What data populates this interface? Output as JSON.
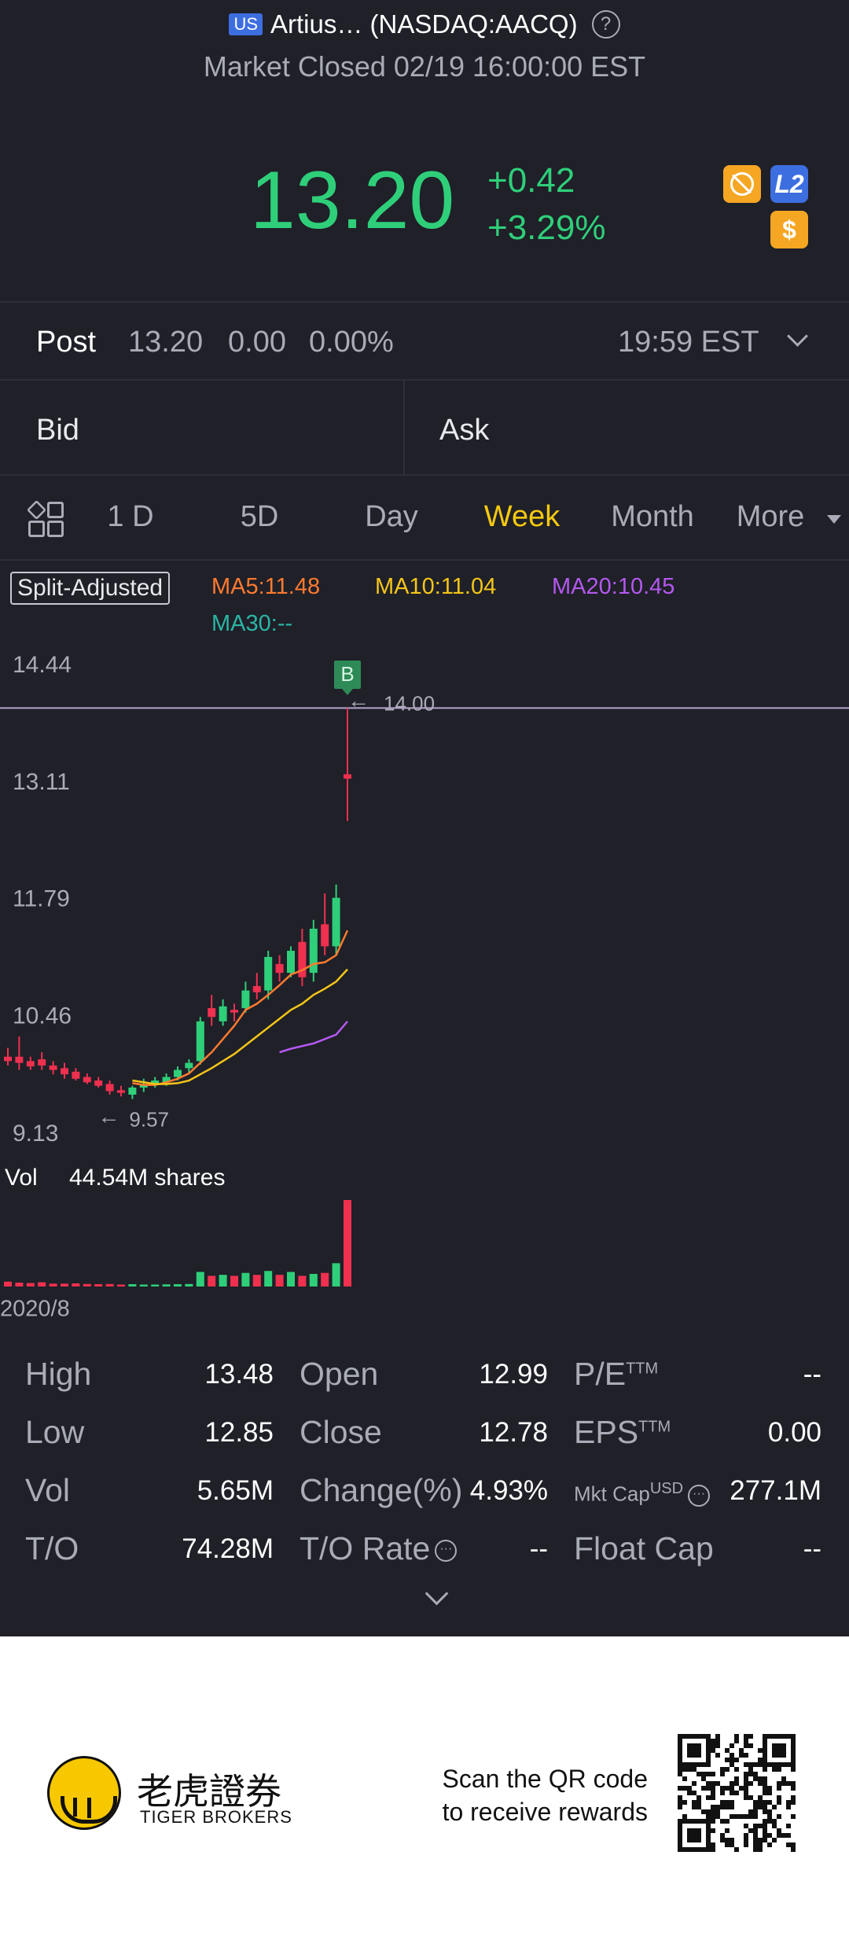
{
  "header": {
    "badge": "US",
    "title": "Artius… (NASDAQ:AACQ)",
    "status": "Market Closed 02/19 16:00:00 EST"
  },
  "quote": {
    "price": "13.20",
    "change": "+0.42",
    "change_pct": "+3.29%",
    "l2": "L2",
    "dollar": "$"
  },
  "post": {
    "label": "Post",
    "price": "13.20",
    "change": "0.00",
    "change_pct": "0.00%",
    "time": "19:59 EST"
  },
  "bid_ask": [
    "Bid",
    "Ask"
  ],
  "tabs": [
    "1 D",
    "5D",
    "Day",
    "Week",
    "Month",
    "More"
  ],
  "active_tab": 3,
  "chart_data": {
    "type": "candlestick",
    "badge": "Split-Adjusted",
    "ylim": [
      9.13,
      14.44
    ],
    "yticks": [
      14.44,
      13.11,
      11.79,
      10.46,
      9.13
    ],
    "candles": {
      "open": [
        10.05,
        10.05,
        10.0,
        10.02,
        9.95,
        9.92,
        9.88,
        9.82,
        9.78,
        9.74,
        9.67,
        9.62,
        9.7,
        9.74,
        9.76,
        9.82,
        9.92,
        10.0,
        10.6,
        10.45,
        10.58,
        10.6,
        10.85,
        10.8,
        11.1,
        11.0,
        11.35,
        11.0,
        11.55,
        11.3,
        13.25
      ],
      "high": [
        10.15,
        10.28,
        10.05,
        10.1,
        10.0,
        9.98,
        9.92,
        9.86,
        9.82,
        9.78,
        9.72,
        9.72,
        9.8,
        9.82,
        9.86,
        9.94,
        10.02,
        10.5,
        10.75,
        10.7,
        10.65,
        10.9,
        11.0,
        11.25,
        11.2,
        11.3,
        11.5,
        11.6,
        11.9,
        12.0,
        14.0
      ],
      "low": [
        9.95,
        9.9,
        9.9,
        9.9,
        9.85,
        9.8,
        9.78,
        9.74,
        9.7,
        9.62,
        9.6,
        9.57,
        9.65,
        9.7,
        9.72,
        9.78,
        9.86,
        9.96,
        10.4,
        10.4,
        10.45,
        10.55,
        10.7,
        10.7,
        10.9,
        10.95,
        10.85,
        10.9,
        11.2,
        11.2,
        12.72
      ],
      "close": [
        10.0,
        9.98,
        9.94,
        9.95,
        9.9,
        9.85,
        9.8,
        9.76,
        9.72,
        9.66,
        9.64,
        9.7,
        9.74,
        9.78,
        9.82,
        9.9,
        9.98,
        10.45,
        10.5,
        10.62,
        10.55,
        10.8,
        10.78,
        11.18,
        11.0,
        11.25,
        10.95,
        11.5,
        11.3,
        11.85,
        13.2
      ]
    },
    "series": [
      {
        "name": "MA5:11.48",
        "color": "#ff7a2f",
        "values": [
          null,
          null,
          null,
          null,
          null,
          null,
          null,
          null,
          null,
          null,
          null,
          9.75,
          9.73,
          9.73,
          9.76,
          9.8,
          9.86,
          9.98,
          10.1,
          10.25,
          10.4,
          10.58,
          10.65,
          10.75,
          10.86,
          10.98,
          11.03,
          11.1,
          11.12,
          11.2,
          11.48
        ]
      },
      {
        "name": "MA10:11.04",
        "color": "#f5c518",
        "values": [
          null,
          null,
          null,
          null,
          null,
          null,
          null,
          null,
          null,
          null,
          null,
          9.78,
          9.76,
          9.74,
          9.74,
          9.75,
          9.78,
          9.85,
          9.92,
          10.0,
          10.08,
          10.18,
          10.28,
          10.38,
          10.48,
          10.58,
          10.65,
          10.75,
          10.82,
          10.9,
          11.04
        ]
      },
      {
        "name": "MA20:10.45",
        "color": "#b458f0",
        "values": [
          null,
          null,
          null,
          null,
          null,
          null,
          null,
          null,
          null,
          null,
          null,
          null,
          null,
          null,
          null,
          null,
          null,
          null,
          null,
          null,
          null,
          null,
          null,
          null,
          10.1,
          10.14,
          10.17,
          10.2,
          10.25,
          10.3,
          10.45
        ]
      },
      {
        "name": "MA30:--",
        "color": "#2ab5a5",
        "values": [
          null,
          null,
          null,
          null,
          null,
          null,
          null,
          null,
          null,
          null,
          null,
          null,
          null,
          null,
          null,
          null,
          null,
          null,
          null,
          null,
          null,
          null,
          null,
          null,
          null,
          null,
          null,
          null,
          null,
          null,
          null
        ]
      }
    ],
    "annotations": {
      "buy": "B",
      "high": "14.00",
      "low": "9.57"
    },
    "volume": {
      "label": "Vol",
      "total": "44.54M shares",
      "values": [
        2.5,
        2,
        1.8,
        2.2,
        1.5,
        1.5,
        1.6,
        1.3,
        1.2,
        1.3,
        1.0,
        1.2,
        1.0,
        1.0,
        1.1,
        1.2,
        1.3,
        7.5,
        5.5,
        6,
        5.5,
        7,
        6,
        8,
        6,
        7.5,
        5.5,
        6.5,
        7,
        12,
        44.54
      ]
    },
    "x_start": "2020/8"
  },
  "stats": [
    [
      {
        "label": "High",
        "value": "13.48"
      },
      {
        "label": "Open",
        "value": "12.99"
      },
      {
        "label": "P/E",
        "sup": "TTM",
        "value": "--"
      }
    ],
    [
      {
        "label": "Low",
        "value": "12.85"
      },
      {
        "label": "Close",
        "value": "12.78"
      },
      {
        "label": "EPS",
        "sup": "TTM",
        "value": "0.00"
      }
    ],
    [
      {
        "label": "Vol",
        "value": "5.65M"
      },
      {
        "label": "Change(%)",
        "value": "4.93%"
      },
      {
        "label": "Mkt Cap",
        "sup": "USD",
        "value": "277.1M"
      }
    ],
    [
      {
        "label": "T/O",
        "value": "74.28M"
      },
      {
        "label": "T/O Rate",
        "value": "--"
      },
      {
        "label": "Float Cap",
        "value": "--"
      }
    ]
  ],
  "footer": {
    "brand_cn": "老虎證券",
    "brand_en": "TIGER BROKERS",
    "cta": [
      "Scan the QR code",
      "to receive rewards"
    ]
  }
}
